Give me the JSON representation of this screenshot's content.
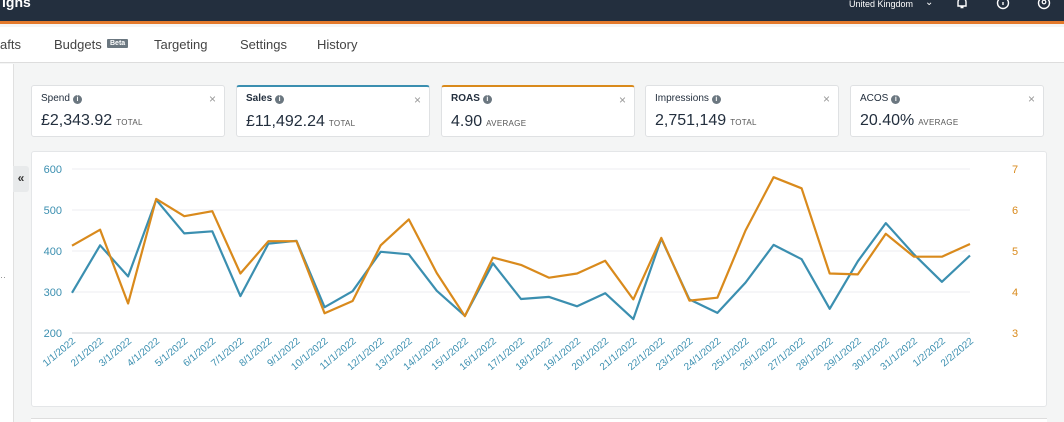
{
  "header": {
    "brand": "igns",
    "region": "United Kingdom",
    "icons": [
      "bell-icon",
      "help-icon",
      "account-icon"
    ]
  },
  "tabs": [
    {
      "label": "afts"
    },
    {
      "label": "Budgets"
    },
    {
      "label": "Targeting"
    },
    {
      "label": "Settings"
    },
    {
      "label": "History"
    }
  ],
  "beta_badge": "Beta",
  "collapse_label": "«",
  "rail_dots": "··",
  "metrics": [
    {
      "label": "Spend",
      "value": "£2,343.92",
      "unit": "TOTAL",
      "selected": false
    },
    {
      "label": "Sales",
      "value": "£11,492.24",
      "unit": "TOTAL",
      "selected": true,
      "color": "#3b8fb0"
    },
    {
      "label": "ROAS",
      "value": "4.90",
      "unit": "AVERAGE",
      "selected": true,
      "color": "#d98a1c"
    },
    {
      "label": "Impressions",
      "value": "2,751,149",
      "unit": "TOTAL",
      "selected": false
    },
    {
      "label": "ACOS",
      "value": "20.40%",
      "unit": "AVERAGE",
      "selected": false
    }
  ],
  "info_glyph": "i",
  "close_glyph": "×",
  "chart_data": {
    "type": "line",
    "categories": [
      "1/1/2022",
      "2/1/2022",
      "3/1/2022",
      "4/1/2022",
      "5/1/2022",
      "6/1/2022",
      "7/1/2022",
      "8/1/2022",
      "9/1/2022",
      "10/1/2022",
      "11/1/2022",
      "12/1/2022",
      "13/1/2022",
      "14/1/2022",
      "15/1/2022",
      "16/1/2022",
      "17/1/2022",
      "18/1/2022",
      "19/1/2022",
      "20/1/2022",
      "21/1/2022",
      "22/1/2022",
      "23/1/2022",
      "24/1/2022",
      "25/1/2022",
      "26/1/2022",
      "27/1/2022",
      "28/1/2022",
      "29/1/2022",
      "30/1/2022",
      "31/1/2022",
      "1/2/2022",
      "2/2/2022"
    ],
    "series": [
      {
        "name": "Sales",
        "axis": "left",
        "color": "#3b8fb0",
        "values": [
          298,
          414,
          338,
          525,
          443,
          448,
          290,
          418,
          425,
          263,
          302,
          398,
          392,
          303,
          242,
          370,
          283,
          288,
          265,
          297,
          234,
          430,
          282,
          249,
          323,
          415,
          380,
          259,
          375,
          468,
          392,
          325,
          389
        ]
      },
      {
        "name": "ROAS",
        "axis": "right",
        "color": "#d98a1c",
        "values": [
          5.13,
          5.52,
          3.72,
          6.27,
          5.85,
          5.97,
          4.45,
          5.24,
          5.24,
          3.48,
          3.78,
          5.14,
          5.77,
          4.46,
          3.41,
          4.84,
          4.66,
          4.35,
          4.45,
          4.76,
          3.82,
          5.32,
          3.79,
          3.86,
          5.5,
          6.8,
          6.53,
          4.45,
          4.43,
          5.42,
          4.86,
          4.86,
          5.17
        ]
      }
    ],
    "y_left": {
      "ticks": [
        200,
        300,
        400,
        500,
        600
      ],
      "range": [
        200,
        600
      ],
      "color": "#3b8fb0"
    },
    "y_right": {
      "ticks": [
        3,
        4,
        5,
        6,
        7
      ],
      "range": [
        3,
        7
      ],
      "color": "#d98a1c"
    },
    "grid": true
  }
}
